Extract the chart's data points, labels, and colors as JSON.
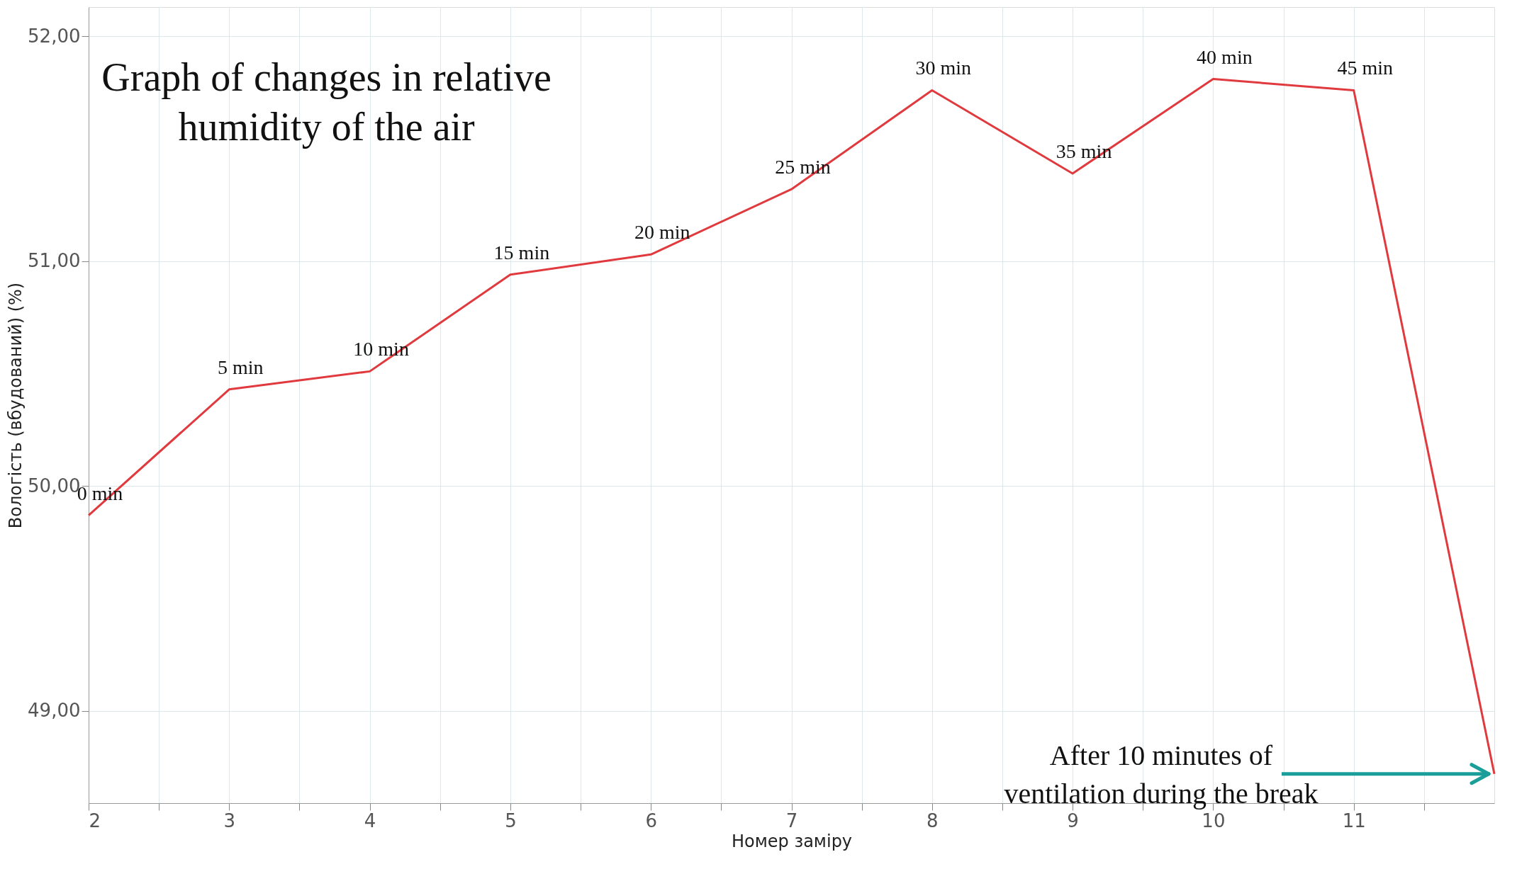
{
  "chart_data": {
    "type": "line",
    "title": "Graph of changes in relative humidity of the air",
    "xlabel": "Номер заміру",
    "ylabel": "Вологість (вбудований) (%)",
    "x": [
      2,
      3,
      4,
      5,
      6,
      7,
      8,
      9,
      10,
      11,
      12
    ],
    "series": [
      {
        "color": "#e03a3e",
        "values": [
          49.87,
          50.43,
          50.51,
          50.94,
          51.03,
          51.32,
          51.76,
          51.39,
          51.81,
          51.76,
          48.72
        ]
      }
    ],
    "xlim": [
      2,
      12
    ],
    "ylim": [
      48.59,
      52.13
    ],
    "xticks": [
      2,
      {
        "value": 2.5,
        "label": null
      },
      3,
      {
        "value": 3.5,
        "label": null
      },
      4,
      {
        "value": 4.5,
        "label": null
      },
      5,
      {
        "value": 5.5,
        "label": null
      },
      6,
      {
        "value": 6.5,
        "label": null
      },
      7,
      {
        "value": 7.5,
        "label": null
      },
      8,
      {
        "value": 8.5,
        "label": null
      },
      9,
      {
        "value": 9.5,
        "label": null
      },
      10,
      {
        "value": 10.5,
        "label": null
      },
      11,
      {
        "value": 11.5,
        "label": null
      }
    ],
    "yticks": [
      {
        "value": 49,
        "label": "49,00"
      },
      {
        "value": 50,
        "label": "50,00"
      },
      {
        "value": 51,
        "label": "51,00"
      },
      {
        "value": 52,
        "label": "52,00"
      }
    ],
    "annotations": [
      {
        "text": "0 min",
        "x": 2,
        "y": 49.87
      },
      {
        "text": "5 min",
        "x": 3,
        "y": 50.43
      },
      {
        "text": "10 min",
        "x": 4,
        "y": 50.51
      },
      {
        "text": "15 min",
        "x": 5,
        "y": 50.94
      },
      {
        "text": "20 min",
        "x": 6,
        "y": 51.03
      },
      {
        "text": "25 min",
        "x": 7,
        "y": 51.32
      },
      {
        "text": "30 min",
        "x": 8,
        "y": 51.76
      },
      {
        "text": "35 min",
        "x": 9,
        "y": 51.39
      },
      {
        "text": "40 min",
        "x": 10,
        "y": 51.81
      },
      {
        "text": "45 min",
        "x": 11,
        "y": 51.76
      },
      {
        "text": "After 10 minutes of ventilation during the break",
        "x": 12,
        "y": 48.72
      }
    ],
    "grid": true,
    "line_style": "solid"
  }
}
